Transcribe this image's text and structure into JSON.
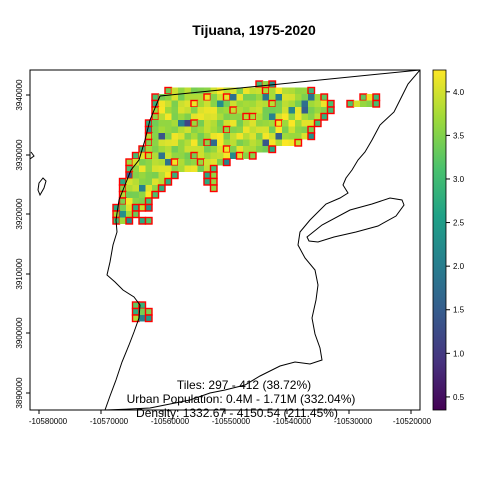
{
  "title": "Tijuana, 1975-2020",
  "x_ticks": [
    "-10580000",
    "-10570000",
    "-10560000",
    "-10550000",
    "-10540000",
    "-10530000",
    "-10520000"
  ],
  "y_ticks": [
    "3890000",
    "3900000",
    "3910000",
    "3920000",
    "3930000",
    "3940000"
  ],
  "legend_ticks": [
    "0.5",
    "1.0",
    "1.5",
    "2.0",
    "2.5",
    "3.0",
    "3.5",
    "4.0"
  ],
  "stats": {
    "tiles": "Tiles: 297 - 412 (38.72%)",
    "population": "Urban Population: 0.4M - 1.71M (332.04%)",
    "density": "Density: 1332.67 - 4150.54 (211.45%)"
  },
  "chart_data": {
    "type": "heatmap",
    "title": "Tijuana, 1975-2020",
    "xlim": [
      -10583000,
      -10518000
    ],
    "ylim": [
      3887000,
      3944000
    ],
    "colorbar_range": [
      0.35,
      4.25
    ],
    "colormap": "viridis",
    "outline_color": "#ff0000",
    "x_ticks": [
      -10580000,
      -10570000,
      -10560000,
      -10550000,
      -10540000,
      -10530000,
      -10520000
    ],
    "y_ticks": [
      3890000,
      3900000,
      3910000,
      3920000,
      3930000,
      3940000
    ],
    "legend_ticks": [
      0.5,
      1.0,
      1.5,
      2.0,
      2.5,
      3.0,
      3.5,
      4.0
    ]
  }
}
